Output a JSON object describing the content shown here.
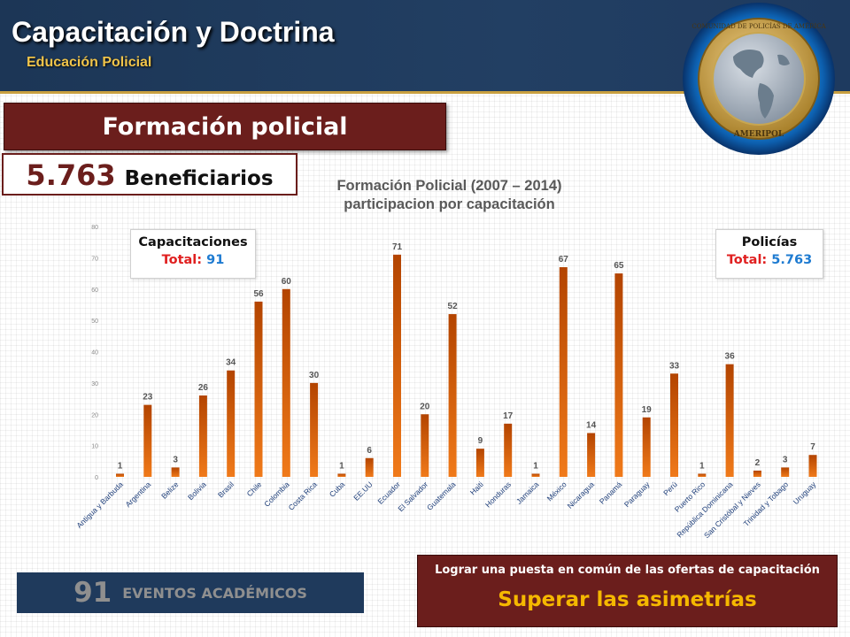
{
  "header": {
    "title": "Capacitación y Doctrina",
    "subtitle": "Educación Policial",
    "emblem_text_top": "COMUNIDAD DE POLICÍAS DE AMÉRICA",
    "emblem_text_bottom": "AMERIPOL"
  },
  "section": {
    "title": "Formación policial"
  },
  "beneficiaries": {
    "number": "5.763",
    "label": "Beneficiarios"
  },
  "legend_left": {
    "title": "Capacitaciones",
    "total_label": "Total:",
    "total_value": "91"
  },
  "legend_right": {
    "title": "Policías",
    "total_label": "Total:",
    "total_value": "5.763"
  },
  "events": {
    "number": "91",
    "label": "EVENTOS ACADÉMICOS"
  },
  "goal": {
    "line1": "Lograr una puesta en común de las ofertas de capacitación",
    "line2": "Superar las asimetrías"
  },
  "colors": {
    "bar_top": "#b34400",
    "bar_bottom": "#f07a1a",
    "brand_blue": "#1c3656",
    "brand_maroon": "#6b1e1c",
    "accent_gold": "#f0c44a"
  },
  "chart_data": {
    "type": "bar",
    "title": "Formación Policial (2007 – 2014)",
    "subtitle": "participacion por capacitación",
    "categories": [
      "Antigua y Barbuda",
      "Argentina",
      "Belize",
      "Bolivia",
      "Brasil",
      "Chile",
      "Colombia",
      "Costa Rica",
      "Cuba",
      "EE.UU",
      "Ecuador",
      "El Salvador",
      "Guatemala",
      "Haiti",
      "Honduras",
      "Jamaica",
      "México",
      "Nicaragua",
      "Panamá",
      "Paraguay",
      "Perú",
      "Puerto Rico",
      "República Dominicana",
      "San Cristóbal y Nieves",
      "Trinidad y Tobago",
      "Uruguay"
    ],
    "values": [
      1,
      23,
      3,
      26,
      34,
      56,
      60,
      30,
      1,
      6,
      71,
      20,
      52,
      9,
      17,
      1,
      67,
      14,
      65,
      19,
      33,
      1,
      36,
      2,
      3,
      7
    ],
    "yticks": [
      0,
      10,
      20,
      30,
      40,
      50,
      60,
      70,
      80
    ],
    "ylim": [
      0,
      80
    ],
    "grid": false
  }
}
